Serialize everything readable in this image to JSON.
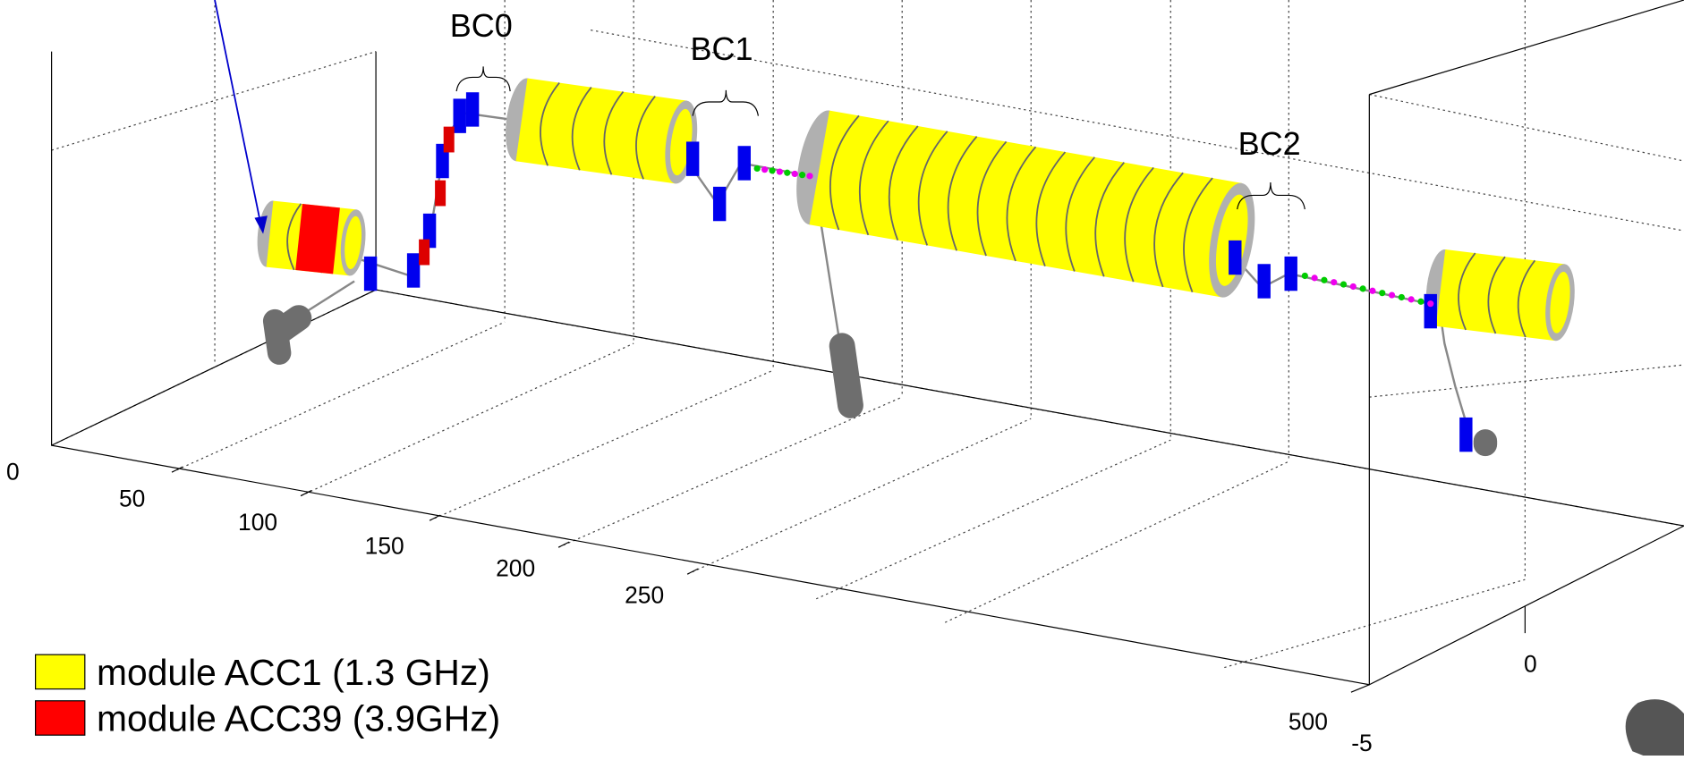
{
  "annotations": {
    "bc0": "BC0",
    "bc1": "BC1",
    "bc2": "BC2"
  },
  "axes": {
    "x_ticks": [
      "0",
      "50",
      "100",
      "150",
      "200",
      "250"
    ],
    "y_ticks": [
      "500"
    ],
    "z_ticks": [
      "0",
      "-5"
    ]
  },
  "legend": [
    {
      "label": "module ACC1  (1.3 GHz)",
      "color": "#ffff00"
    },
    {
      "label": "module ACC39 (3.9GHz)",
      "color": "#ff0000"
    }
  ]
}
